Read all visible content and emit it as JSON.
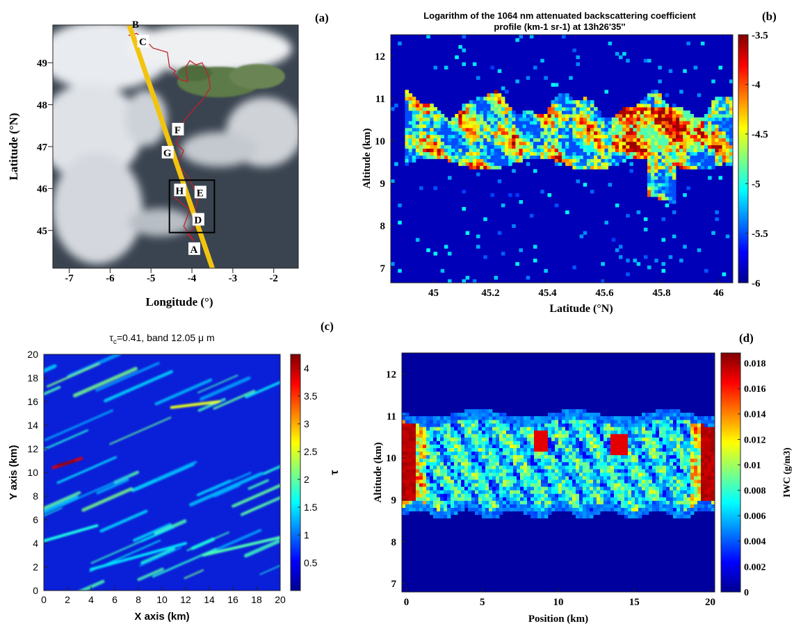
{
  "figure": {
    "panels": [
      {
        "id": "a",
        "label": "(a)",
        "chart_data": {
          "type": "map",
          "xlabel": "Longitude (°)",
          "ylabel": "Latitude (°N)",
          "xlim": [
            -7.4,
            -1.4
          ],
          "ylim": [
            44.1,
            49.9
          ],
          "xticks": [
            -7,
            -6,
            -5,
            -4,
            -3,
            -2
          ],
          "yticks": [
            45,
            46,
            47,
            48,
            49
          ],
          "track": {
            "color": "#f2c40f",
            "from": [
              -5.55,
              49.95
            ],
            "to": [
              -3.5,
              44.1
            ]
          },
          "flight_path_color": "#c0202a",
          "inset_box": {
            "lon": [
              -4.55,
              -3.45
            ],
            "lat": [
              44.95,
              46.2
            ]
          },
          "points": [
            {
              "label": "B",
              "lon": -5.38,
              "lat": 49.92
            },
            {
              "label": "C",
              "lon": -5.2,
              "lat": 49.5
            },
            {
              "label": "F",
              "lon": -4.35,
              "lat": 47.4
            },
            {
              "label": "G",
              "lon": -4.6,
              "lat": 46.85
            },
            {
              "label": "H",
              "lon": -4.3,
              "lat": 45.95
            },
            {
              "label": "E",
              "lon": -3.8,
              "lat": 45.9
            },
            {
              "label": "D",
              "lon": -3.85,
              "lat": 45.25
            },
            {
              "label": "A",
              "lon": -3.95,
              "lat": 44.55
            }
          ]
        }
      },
      {
        "id": "b",
        "label": "(b)",
        "chart_data": {
          "type": "heatmap",
          "title": "Logarithm of the 1064 nm attenuated backscattering coefficient profile (km-1 sr-1) at 13h26'35''",
          "title_lines": [
            "Logarithm of the 1064 nm attenuated backscattering coefficient",
            "profile (km-1 sr-1) at 13h26'35''"
          ],
          "xlabel": "Latitude (°N)",
          "ylabel": "Altitude (km)",
          "xlim": [
            44.85,
            46.05
          ],
          "ylim": [
            6.65,
            12.5
          ],
          "xticks": [
            "45",
            "45.2",
            "45.4",
            "45.6",
            "45.8",
            "46"
          ],
          "yticks": [
            "7",
            "8",
            "9",
            "10",
            "11",
            "12"
          ],
          "colorbar": {
            "min": -6,
            "max": -3.5,
            "ticks": [
              "-3.5",
              "-4",
              "-4.5",
              "-5",
              "-5.5",
              "-6"
            ]
          },
          "cloud_layer_km": [
            9.3,
            11.3
          ]
        }
      },
      {
        "id": "c",
        "label": "(c)",
        "chart_data": {
          "type": "heatmap",
          "title_main": "τ",
          "title_sub": "c",
          "title_rest": "=0.41, band 12.05 μ m",
          "xlabel": "X axis (km)",
          "ylabel": "Y axis (km)",
          "xlim": [
            0,
            20
          ],
          "ylim": [
            0,
            20
          ],
          "xticks": [
            "0",
            "2",
            "4",
            "6",
            "8",
            "10",
            "12",
            "14",
            "16",
            "18",
            "20"
          ],
          "yticks": [
            "0",
            "2",
            "4",
            "6",
            "8",
            "10",
            "12",
            "14",
            "16",
            "18",
            "20"
          ],
          "colorbar": {
            "label": "τ",
            "min": 0,
            "max": 4.25,
            "ticks": [
              "4",
              "3.5",
              "3",
              "2.5",
              "2",
              "1.5",
              "1",
              "0.5"
            ]
          }
        }
      },
      {
        "id": "d",
        "label": "(d)",
        "chart_data": {
          "type": "heatmap",
          "xlabel": "Position (km)",
          "ylabel": "Altitude (km)",
          "xlim": [
            -0.3,
            20.3
          ],
          "ylim": [
            6.8,
            12.5
          ],
          "xticks": [
            "0",
            "5",
            "10",
            "15",
            "20"
          ],
          "yticks": [
            "7",
            "8",
            "9",
            "10",
            "11",
            "12"
          ],
          "colorbar": {
            "label": "IWC (g/m3)",
            "min": 0,
            "max": 0.0188,
            "ticks": [
              "0.018",
              "0.016",
              "0.014",
              "0.012",
              "0.01",
              "0.008",
              "0.006",
              "0.004",
              "0.002",
              "0"
            ]
          },
          "cloud_layer_km": [
            8.7,
            11.0
          ]
        }
      }
    ]
  }
}
